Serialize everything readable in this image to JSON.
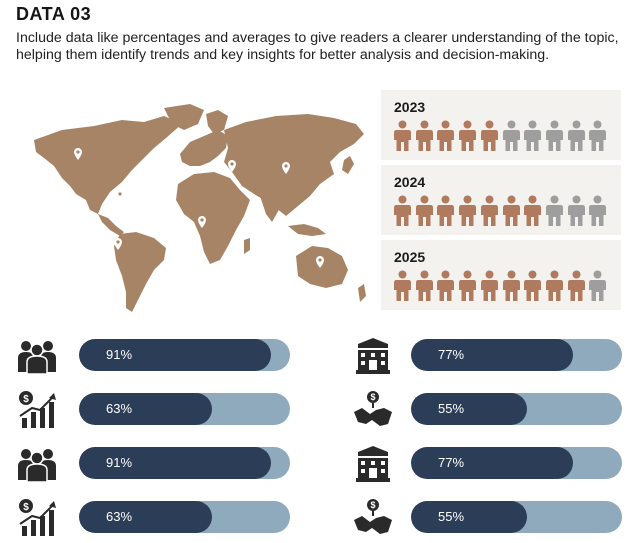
{
  "header": {
    "title": "DATA 03",
    "description": "Include data like percentages and averages to give readers a clearer understanding of the topic, helping them identify trends and key insights for better analysis and decision-making."
  },
  "colors": {
    "map_land": "#a88466",
    "person_active": "#b07a5f",
    "person_inactive": "#9e9e9e",
    "bar_fill": "#2c3e57",
    "bar_track": "#8fa9bd",
    "panel_bg": "#f4f2ef"
  },
  "map": {
    "icon": "world-map",
    "pins": [
      "map-pin-icon",
      "map-pin-icon",
      "map-pin-icon",
      "map-pin-icon",
      "map-pin-icon",
      "map-pin-icon"
    ]
  },
  "years": [
    {
      "label": "2023",
      "active": 5,
      "total": 10
    },
    {
      "label": "2024",
      "active": 7,
      "total": 10
    },
    {
      "label": "2025",
      "active": 9,
      "total": 10
    }
  ],
  "metrics": [
    {
      "icon": "people-group-icon",
      "label": "91%",
      "value": 0.91
    },
    {
      "icon": "building-icon",
      "label": "77%",
      "value": 0.77
    },
    {
      "icon": "finance-chart-icon",
      "label": "63%",
      "value": 0.63
    },
    {
      "icon": "handshake-icon",
      "label": "55%",
      "value": 0.55
    },
    {
      "icon": "people-group-icon",
      "label": "91%",
      "value": 0.91
    },
    {
      "icon": "building-icon",
      "label": "77%",
      "value": 0.77
    },
    {
      "icon": "finance-chart-icon",
      "label": "63%",
      "value": 0.63
    },
    {
      "icon": "handshake-icon",
      "label": "55%",
      "value": 0.55
    }
  ]
}
